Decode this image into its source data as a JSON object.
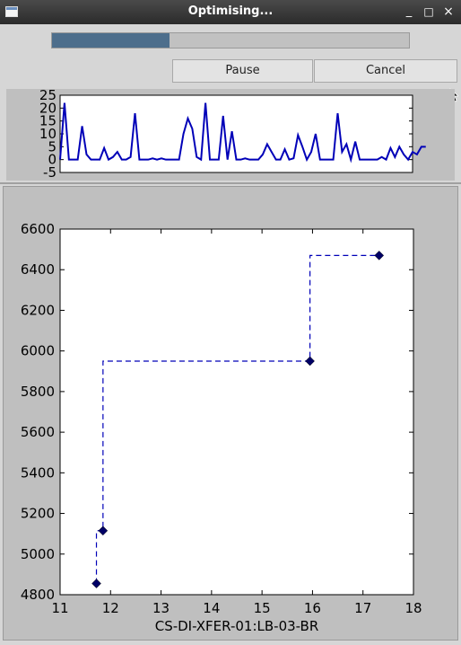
{
  "window": {
    "title": "Optimising...",
    "buttons": {
      "minimize": "_",
      "maximize": "□",
      "close": "×"
    }
  },
  "progress": {
    "value": 0.33
  },
  "buttons": {
    "pause": "Pause",
    "cancel": "Cancel"
  },
  "colors": {
    "progress_fill": "#4d6e8c",
    "line": "#0000b8",
    "marker": "#000066"
  },
  "chart_data": [
    {
      "type": "line",
      "ylim": [
        -5,
        25
      ],
      "yticks": [
        -5,
        0,
        5,
        10,
        15,
        20,
        25
      ],
      "xlim": [
        0,
        80
      ],
      "y": [
        0,
        22,
        0,
        0,
        0,
        13,
        2,
        0,
        0,
        0,
        4.5,
        0,
        1,
        3,
        0,
        0,
        1,
        18,
        0,
        0,
        0,
        0.5,
        0,
        0.5,
        0,
        0,
        0,
        0,
        10,
        16,
        12,
        1,
        0,
        22,
        0,
        0,
        0,
        17,
        0,
        11,
        0,
        0,
        0.5,
        0,
        0,
        0,
        2,
        6,
        3,
        0,
        0,
        4,
        0,
        0.5,
        9.5,
        5,
        0,
        3,
        10,
        0,
        0,
        0,
        0,
        18,
        3,
        6,
        0,
        7,
        0,
        0,
        0,
        0,
        0,
        1,
        0,
        4.5,
        1,
        5,
        2,
        0,
        3,
        2,
        5,
        5
      ]
    },
    {
      "type": "scatter",
      "xlabel": "CS-DI-XFER-01:LB-03-BR",
      "xlim": [
        11,
        18
      ],
      "ylim": [
        4800,
        6600
      ],
      "xticks": [
        11,
        12,
        13,
        14,
        15,
        16,
        17,
        18
      ],
      "yticks": [
        4800,
        5000,
        5200,
        5400,
        5600,
        5800,
        6000,
        6200,
        6400,
        6600
      ],
      "points": [
        {
          "x": 11.72,
          "y": 4855
        },
        {
          "x": 11.85,
          "y": 5115
        },
        {
          "x": 15.95,
          "y": 5950
        },
        {
          "x": 17.32,
          "y": 6470
        }
      ],
      "step_line": {
        "style": "dashed",
        "x": [
          11.72,
          11.72,
          11.85,
          11.85,
          15.95,
          15.95,
          17.32
        ],
        "y": [
          4855,
          5115,
          5115,
          5950,
          5950,
          6470,
          6470
        ]
      }
    }
  ]
}
